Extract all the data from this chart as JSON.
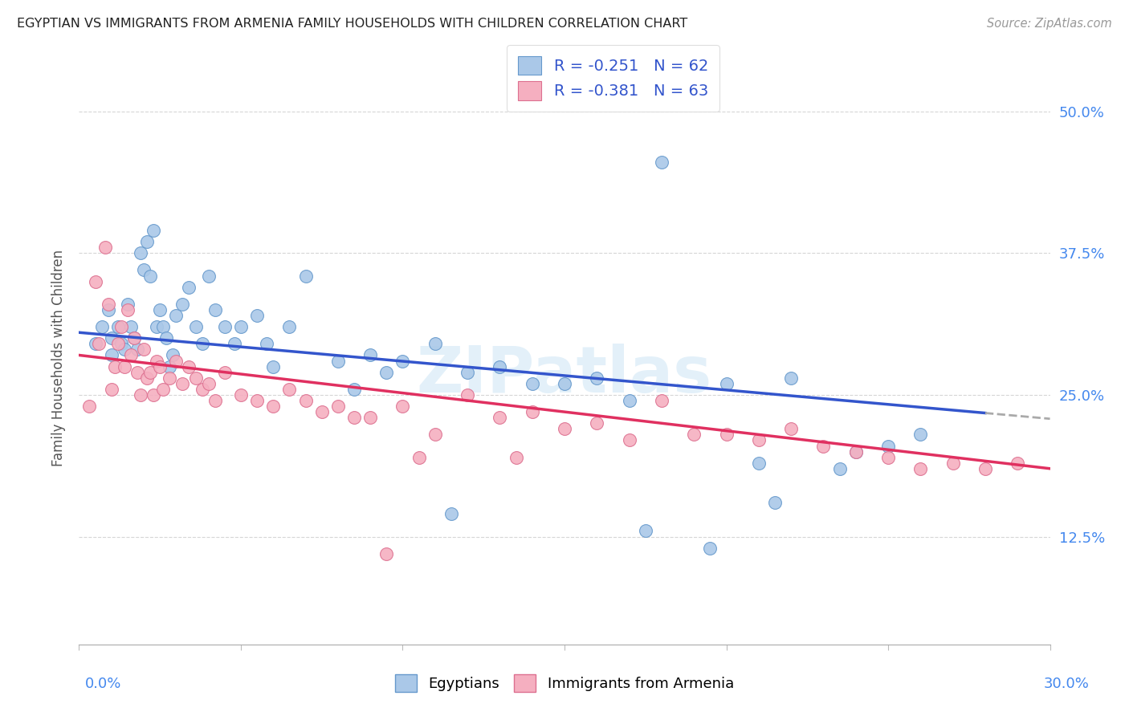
{
  "title": "EGYPTIAN VS IMMIGRANTS FROM ARMENIA FAMILY HOUSEHOLDS WITH CHILDREN CORRELATION CHART",
  "source": "Source: ZipAtlas.com",
  "ylabel": "Family Households with Children",
  "yticks": [
    "12.5%",
    "25.0%",
    "37.5%",
    "50.0%"
  ],
  "ytick_vals": [
    0.125,
    0.25,
    0.375,
    0.5
  ],
  "xlim": [
    0.0,
    0.3
  ],
  "ylim": [
    0.03,
    0.535
  ],
  "egyptians_color": "#aac8e8",
  "armenians_color": "#f5afc0",
  "egyptians_edge": "#6699cc",
  "armenians_edge": "#dd7090",
  "line_egyptian_color": "#3355cc",
  "line_armenian_color": "#e03060",
  "line_dashed_color": "#aaaaaa",
  "R_egyptian": -0.251,
  "N_egyptian": 62,
  "R_armenian": -0.381,
  "N_armenian": 63,
  "legend_labels": [
    "Egyptians",
    "Immigrants from Armenia"
  ],
  "watermark": "ZIPatlas",
  "egyptians_x": [
    0.005,
    0.007,
    0.009,
    0.01,
    0.01,
    0.012,
    0.013,
    0.014,
    0.015,
    0.016,
    0.017,
    0.018,
    0.019,
    0.02,
    0.021,
    0.022,
    0.023,
    0.024,
    0.025,
    0.026,
    0.027,
    0.028,
    0.029,
    0.03,
    0.032,
    0.034,
    0.036,
    0.038,
    0.04,
    0.042,
    0.045,
    0.048,
    0.05,
    0.055,
    0.058,
    0.06,
    0.065,
    0.07,
    0.08,
    0.085,
    0.09,
    0.095,
    0.1,
    0.11,
    0.12,
    0.13,
    0.14,
    0.15,
    0.16,
    0.17,
    0.18,
    0.2,
    0.21,
    0.22,
    0.24,
    0.25,
    0.26,
    0.115,
    0.175,
    0.195,
    0.215,
    0.235
  ],
  "egyptians_y": [
    0.295,
    0.31,
    0.325,
    0.3,
    0.285,
    0.31,
    0.295,
    0.29,
    0.33,
    0.31,
    0.3,
    0.29,
    0.375,
    0.36,
    0.385,
    0.355,
    0.395,
    0.31,
    0.325,
    0.31,
    0.3,
    0.275,
    0.285,
    0.32,
    0.33,
    0.345,
    0.31,
    0.295,
    0.355,
    0.325,
    0.31,
    0.295,
    0.31,
    0.32,
    0.295,
    0.275,
    0.31,
    0.355,
    0.28,
    0.255,
    0.285,
    0.27,
    0.28,
    0.295,
    0.27,
    0.275,
    0.26,
    0.26,
    0.265,
    0.245,
    0.455,
    0.26,
    0.19,
    0.265,
    0.2,
    0.205,
    0.215,
    0.145,
    0.13,
    0.115,
    0.155,
    0.185
  ],
  "armenians_x": [
    0.003,
    0.005,
    0.006,
    0.008,
    0.009,
    0.01,
    0.011,
    0.012,
    0.013,
    0.014,
    0.015,
    0.016,
    0.017,
    0.018,
    0.019,
    0.02,
    0.021,
    0.022,
    0.023,
    0.024,
    0.025,
    0.026,
    0.028,
    0.03,
    0.032,
    0.034,
    0.036,
    0.038,
    0.04,
    0.042,
    0.045,
    0.05,
    0.055,
    0.06,
    0.065,
    0.07,
    0.075,
    0.08,
    0.085,
    0.09,
    0.1,
    0.11,
    0.12,
    0.13,
    0.14,
    0.15,
    0.16,
    0.17,
    0.18,
    0.19,
    0.2,
    0.21,
    0.22,
    0.23,
    0.24,
    0.25,
    0.26,
    0.27,
    0.28,
    0.29,
    0.095,
    0.105,
    0.135
  ],
  "armenians_y": [
    0.24,
    0.35,
    0.295,
    0.38,
    0.33,
    0.255,
    0.275,
    0.295,
    0.31,
    0.275,
    0.325,
    0.285,
    0.3,
    0.27,
    0.25,
    0.29,
    0.265,
    0.27,
    0.25,
    0.28,
    0.275,
    0.255,
    0.265,
    0.28,
    0.26,
    0.275,
    0.265,
    0.255,
    0.26,
    0.245,
    0.27,
    0.25,
    0.245,
    0.24,
    0.255,
    0.245,
    0.235,
    0.24,
    0.23,
    0.23,
    0.24,
    0.215,
    0.25,
    0.23,
    0.235,
    0.22,
    0.225,
    0.21,
    0.245,
    0.215,
    0.215,
    0.21,
    0.22,
    0.205,
    0.2,
    0.195,
    0.185,
    0.19,
    0.185,
    0.19,
    0.11,
    0.195,
    0.195
  ],
  "eg_trend_x0": 0.0,
  "eg_trend_x1": 0.28,
  "eg_trend_y0": 0.305,
  "eg_trend_y1": 0.234,
  "ar_trend_x0": 0.0,
  "ar_trend_x1": 0.3,
  "ar_trend_y0": 0.285,
  "ar_trend_y1": 0.185
}
